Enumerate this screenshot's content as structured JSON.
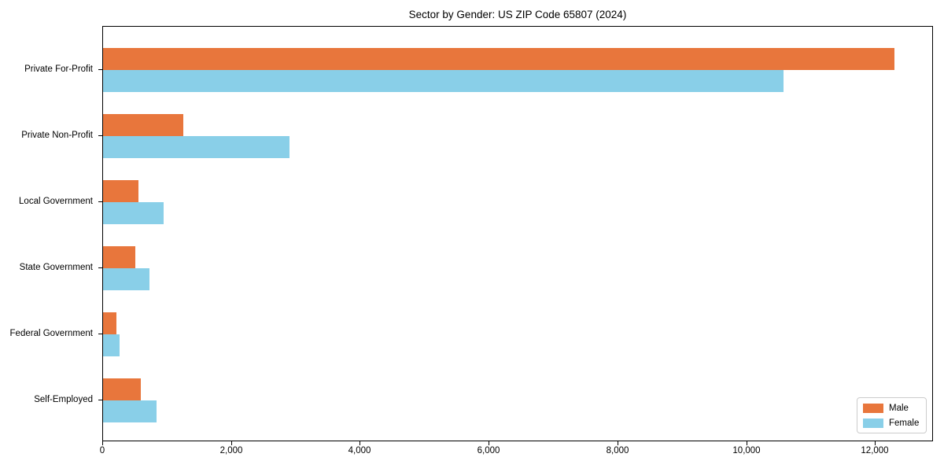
{
  "figure": {
    "background": "#ffffff",
    "axis_color": "#000000"
  },
  "chart_data": {
    "type": "bar",
    "orientation": "horizontal",
    "title": "Sector by Gender: US ZIP Code 65807 (2024)",
    "categories": [
      "Private For-Profit",
      "Private Non-Profit",
      "Local Government",
      "State Government",
      "Federal Government",
      "Self-Employed"
    ],
    "series": [
      {
        "name": "Male",
        "color": "#E8763C",
        "values": [
          12290,
          1250,
          550,
          500,
          210,
          590
        ]
      },
      {
        "name": "Female",
        "color": "#89CFE8",
        "values": [
          10570,
          2900,
          940,
          720,
          260,
          830
        ]
      }
    ],
    "xlabel": "",
    "ylabel": "",
    "xlim": [
      0,
      12900
    ],
    "xticks": [
      0,
      2000,
      4000,
      6000,
      8000,
      10000,
      12000
    ],
    "xtick_labels": [
      "0",
      "2,000",
      "4,000",
      "6,000",
      "8,000",
      "10,000",
      "12,000"
    ],
    "grid": false,
    "legend": {
      "position": "lower-right",
      "entries": [
        "Male",
        "Female"
      ]
    }
  }
}
